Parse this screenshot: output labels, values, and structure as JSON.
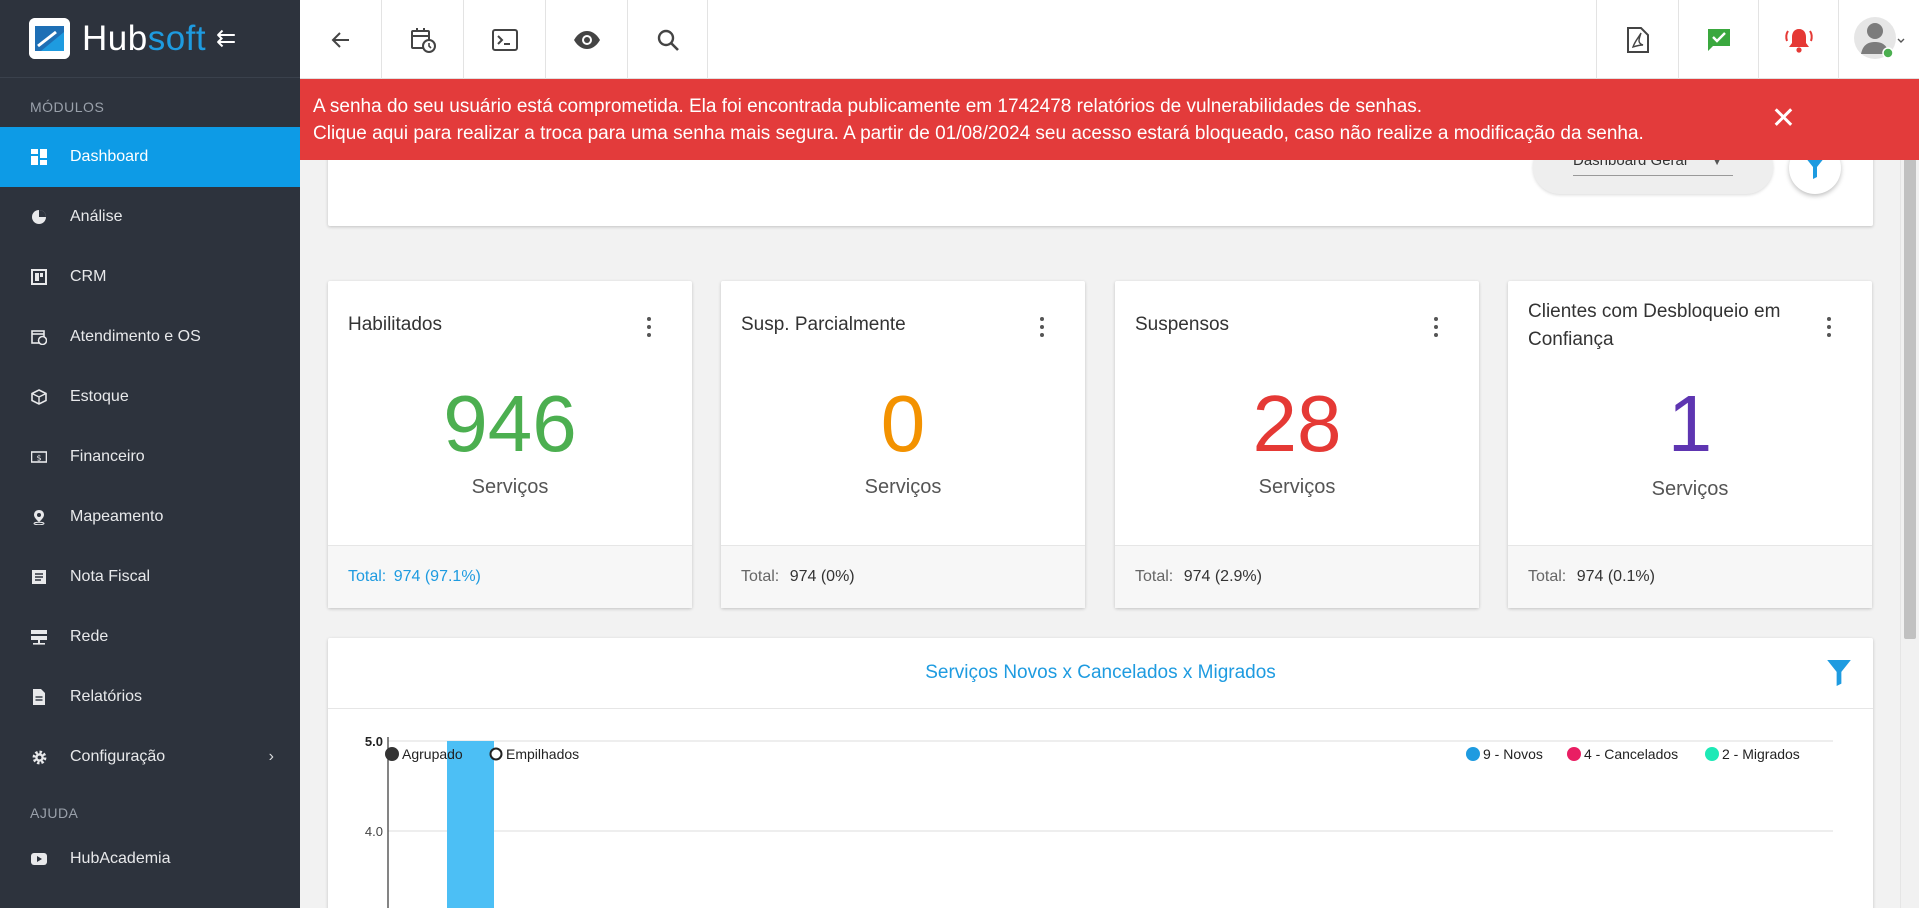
{
  "brand": {
    "name_part1": "Hub",
    "name_part2": "soft"
  },
  "sidebar": {
    "section_modules": "MÓDULOS",
    "section_help": "AJUDA",
    "items": [
      {
        "label": "Dashboard",
        "icon": "dashboard-icon"
      },
      {
        "label": "Análise",
        "icon": "pie-chart-icon"
      },
      {
        "label": "CRM",
        "icon": "crm-icon"
      },
      {
        "label": "Atendimento e OS",
        "icon": "calendar-clock-icon"
      },
      {
        "label": "Estoque",
        "icon": "box-icon"
      },
      {
        "label": "Financeiro",
        "icon": "money-icon"
      },
      {
        "label": "Mapeamento",
        "icon": "map-pin-icon"
      },
      {
        "label": "Nota Fiscal",
        "icon": "invoice-icon"
      },
      {
        "label": "Rede",
        "icon": "network-icon"
      },
      {
        "label": "Relatórios",
        "icon": "report-icon"
      },
      {
        "label": "Configuração",
        "icon": "gear-icon"
      }
    ],
    "help_items": [
      {
        "label": "HubAcademia",
        "icon": "youtube-icon"
      }
    ]
  },
  "alert": {
    "line1": "A senha do seu usuário está comprometida. Ela foi encontrada publicamente em 1742478 relatórios de vulnerabilidades de senhas.",
    "line2": "Clique aqui para realizar a troca para uma senha mais segura. A partir de 01/08/2024 seu acesso estará bloqueado, caso não realize a modificação da senha.",
    "close": "✕"
  },
  "dashboard_select": {
    "value": "Dashboard Geral"
  },
  "cards": [
    {
      "title": "Habilitados",
      "value": "946",
      "unit": "Serviços",
      "total_label": "Total:",
      "total_value": "974 (97.1%)",
      "color": "#4caf50"
    },
    {
      "title": "Susp. Parcialmente",
      "value": "0",
      "unit": "Serviços",
      "total_label": "Total:",
      "total_value": "974 (0%)",
      "color": "#f39200"
    },
    {
      "title": "Suspensos",
      "value": "28",
      "unit": "Serviços",
      "total_label": "Total:",
      "total_value": "974 (2.9%)",
      "color": "#e53935"
    },
    {
      "title": "Clientes com Desbloqueio em Confiança",
      "value": "1",
      "unit": "Serviços",
      "total_label": "Total:",
      "total_value": "974 (0.1%)",
      "color": "#5e35b1"
    }
  ],
  "chart": {
    "title": "Serviços Novos x Cancelados x Migrados",
    "mode_grouped": "Agrupado",
    "mode_stacked": "Empilhados",
    "tick_top": "5.0",
    "tick_second": "4.0"
  },
  "chart_data": {
    "type": "bar",
    "title": "Serviços Novos x Cancelados x Migrados",
    "series": [
      {
        "name": "9 - Novos",
        "color": "#29b6f6"
      },
      {
        "name": "4 - Cancelados",
        "color": "#e91e63"
      },
      {
        "name": "2 - Migrados",
        "color": "#1de9b6"
      }
    ],
    "visible_bar": {
      "series": "9 - Novos",
      "value_at_least": 5.0
    },
    "yticks_visible": [
      5.0,
      4.0
    ],
    "grid": true,
    "legend_position": "top-right"
  },
  "colors": {
    "accent": "#0d9be6",
    "alert": "#e33b3b",
    "sidebar": "#2d333d"
  }
}
